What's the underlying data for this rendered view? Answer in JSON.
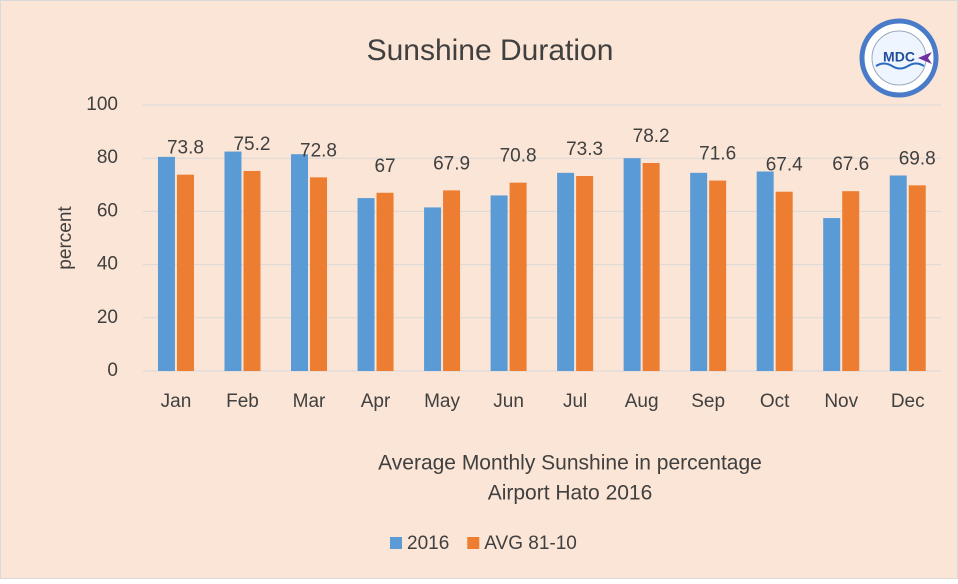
{
  "chart_data": {
    "type": "bar",
    "title": "Sunshine Duration",
    "ylabel": "percent",
    "xlabel": [
      "Average Monthly Sunshine in percentage",
      "Airport Hato 2016"
    ],
    "categories": [
      "Jan",
      "Feb",
      "Mar",
      "Apr",
      "May",
      "Jun",
      "Jul",
      "Aug",
      "Sep",
      "Oct",
      "Nov",
      "Dec"
    ],
    "series": [
      {
        "name": "2016",
        "color": "#5b9bd5",
        "values": [
          80.5,
          82.5,
          81.5,
          65,
          61.5,
          66,
          74.5,
          80,
          74.5,
          75,
          57.5,
          73.5
        ]
      },
      {
        "name": "AVG 81-10",
        "color": "#ed7d31",
        "values": [
          73.8,
          75.2,
          72.8,
          67,
          67.9,
          70.8,
          73.3,
          78.2,
          71.6,
          67.4,
          67.6,
          69.8
        ],
        "data_labels": true
      }
    ],
    "ylim": [
      0,
      100
    ],
    "yticks": [
      0,
      20,
      40,
      60,
      80,
      100
    ],
    "grid": true,
    "legend": "bottom"
  },
  "logo": {
    "text": "MDC"
  }
}
